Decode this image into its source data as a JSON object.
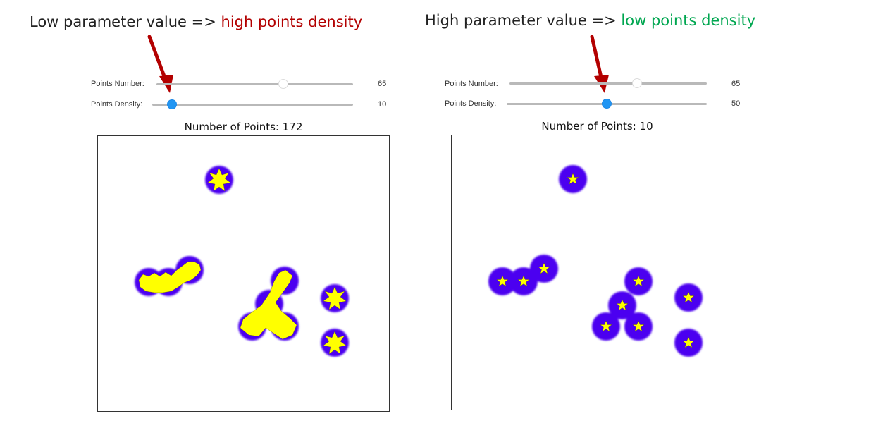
{
  "annotations": {
    "left": {
      "prefix": "Low parameter value",
      "arrow": "=>",
      "emphasis": "high points density",
      "emphasis_color": "#b30000"
    },
    "right": {
      "prefix": "High parameter value",
      "arrow": "=>",
      "emphasis": "low points density",
      "emphasis_color": "#00a650"
    },
    "pointer_color": "#b30000"
  },
  "panels": [
    {
      "points_number": {
        "label": "Points Number:",
        "value": "65"
      },
      "points_density": {
        "label": "Points Density:",
        "value": "10"
      },
      "title": "Number of Points: 172"
    },
    {
      "points_number": {
        "label": "Points Number:",
        "value": "65"
      },
      "points_density": {
        "label": "Points Density:",
        "value": "50"
      },
      "title": "Number of Points: 10"
    }
  ],
  "colors": {
    "blob": "#4b00f0",
    "blob_edge": "#c8bcff",
    "star": "#ffff00",
    "star_outline": "#555500",
    "slider_active": "#2196f3"
  }
}
